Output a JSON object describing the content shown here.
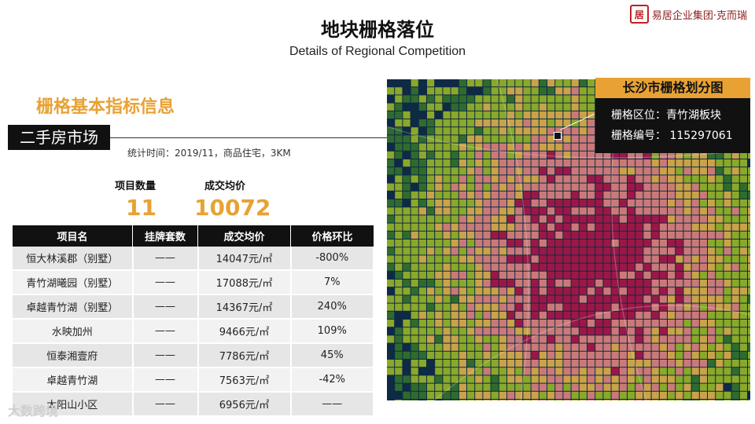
{
  "header": {
    "title": "地块栅格落位",
    "subtitle": "Details of Regional Competition",
    "brand": "易居企业集团·克而瑞",
    "brand_mark": "居"
  },
  "section_title": "栅格基本指标信息",
  "market_tag": "二手房市场",
  "stat_time": "统计时间：2019/11，商品住宅，3KM",
  "kpi": {
    "count_label": "项目数量",
    "count_value": "11",
    "price_label": "成交均价",
    "price_value": "10072"
  },
  "table": {
    "headers": [
      "项目名",
      "挂牌套数",
      "成交均价",
      "价格环比"
    ],
    "rows": [
      [
        "恒大林溪郡（别墅）",
        "——",
        "14047元/㎡",
        "-800%"
      ],
      [
        "青竹湖曦园（别墅）",
        "——",
        "17088元/㎡",
        "7%"
      ],
      [
        "卓越青竹湖（别墅）",
        "——",
        "14367元/㎡",
        "240%"
      ],
      [
        "水映加州",
        "——",
        "9466元/㎡",
        "109%"
      ],
      [
        "恒泰湘壹府",
        "——",
        "7786元/㎡",
        "45%"
      ],
      [
        "卓越青竹湖",
        "——",
        "7563元/㎡",
        "-42%"
      ],
      [
        "太阳山小区",
        "——",
        "6956元/㎡",
        "——"
      ]
    ]
  },
  "map": {
    "header": "长沙市栅格划分图",
    "location": "栅格区位：青竹湖板块",
    "grid_id": "栅格编号：  115297061",
    "colors": {
      "low": "#0f2a45",
      "low_mid": "#2f6b2e",
      "mid": "#8aa82a",
      "mid_high": "#c9a24a",
      "high": "#c97a78",
      "top": "#9b1846"
    }
  },
  "watermark": "大数跨境"
}
